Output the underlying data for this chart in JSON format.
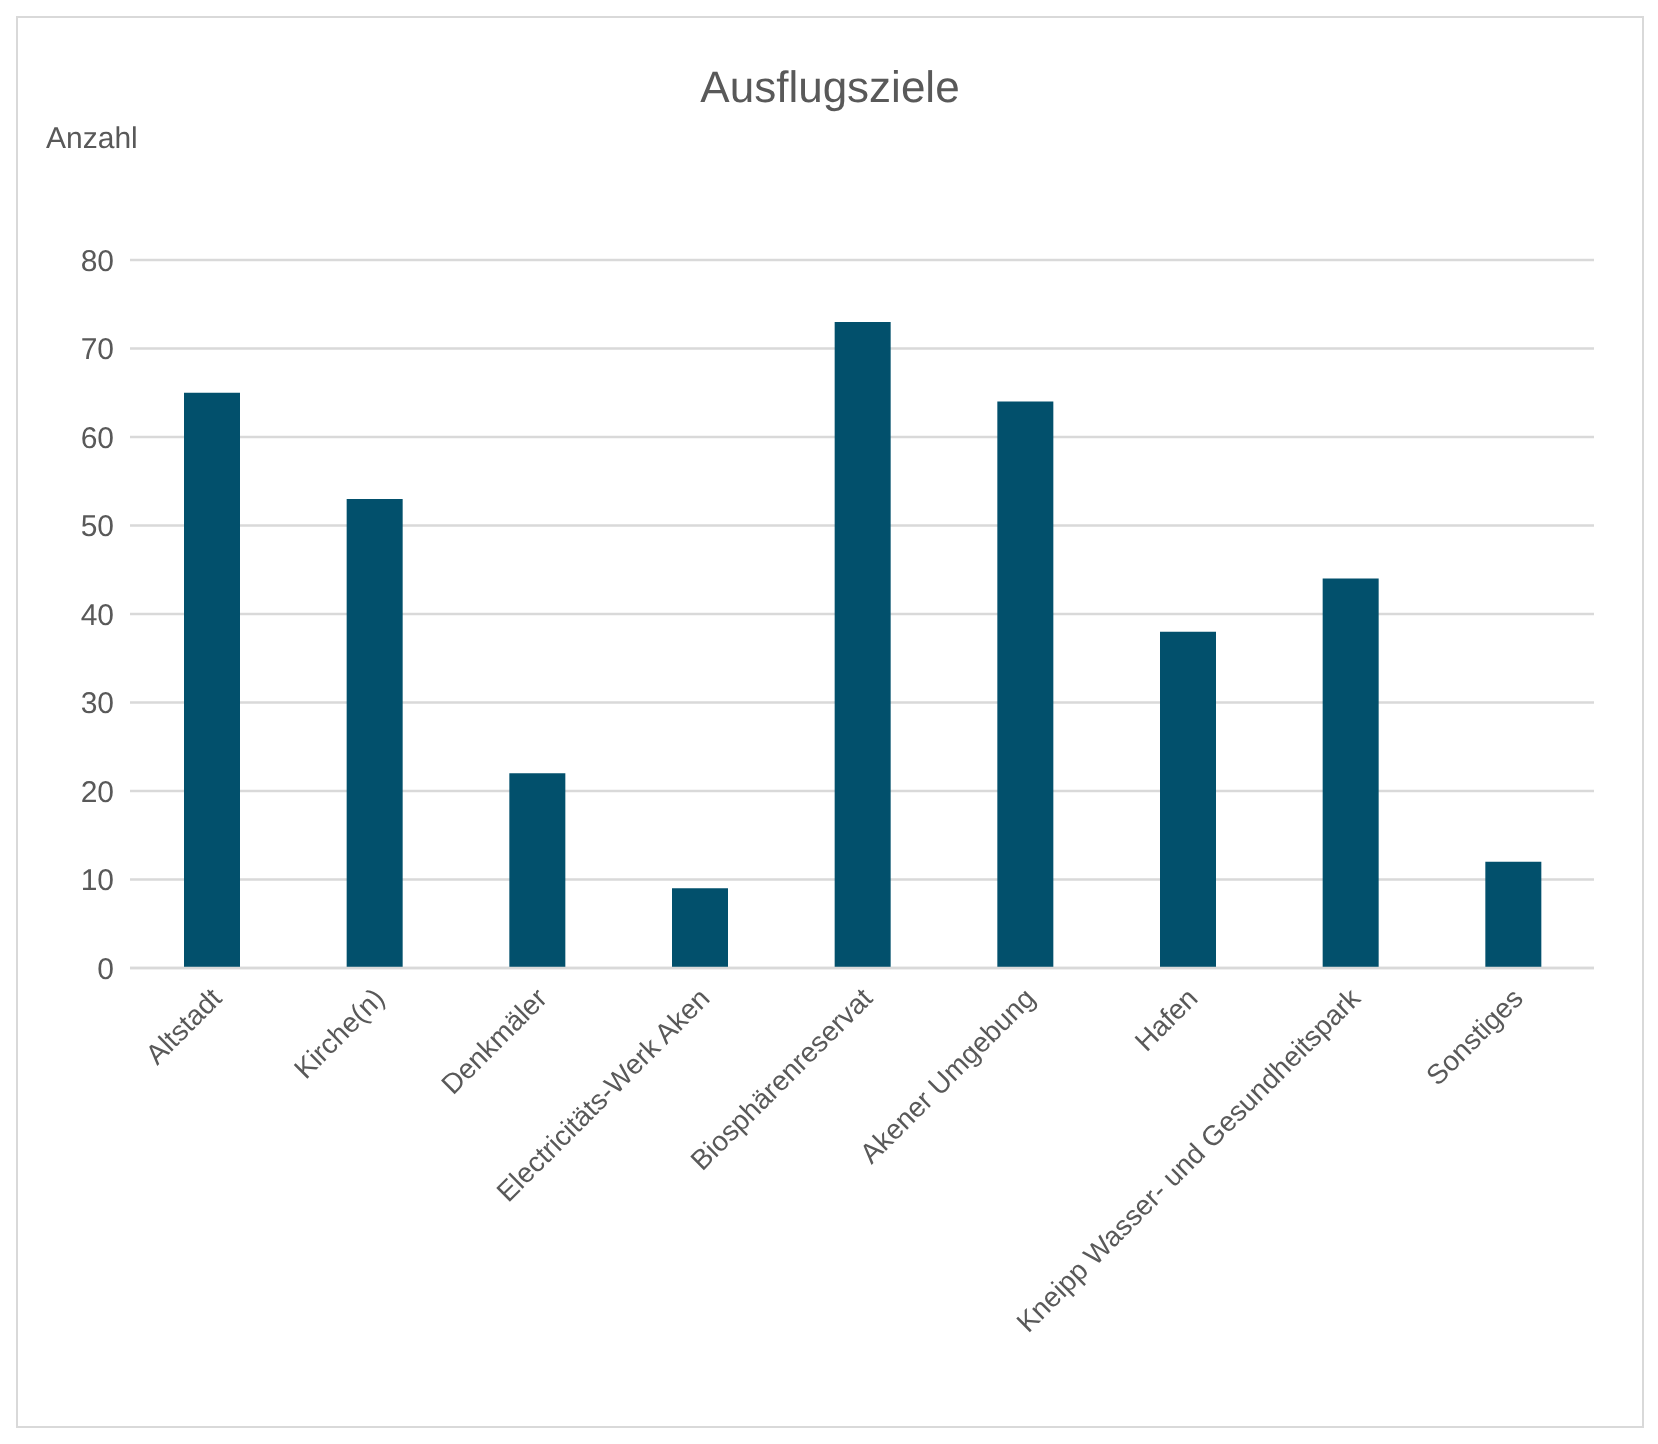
{
  "chart_data": {
    "type": "bar",
    "title": "Ausflugsziele",
    "ylabel": "Anzahl",
    "categories": [
      "Altstadt",
      "Kirche(n)",
      "Denkmäler",
      "Electricitäts-Werk Aken",
      "Biosphärenreservat",
      "Akener Umgebung",
      "Hafen",
      "Kneipp Wasser- und Gesundheitspark",
      "Sonstiges"
    ],
    "values": [
      65,
      53,
      22,
      9,
      73,
      64,
      38,
      44,
      12
    ],
    "color": "#02506c",
    "ylim": [
      0,
      80
    ],
    "yticks": [
      0,
      10,
      20,
      30,
      40,
      50,
      60,
      70,
      80
    ],
    "grid": "y"
  }
}
